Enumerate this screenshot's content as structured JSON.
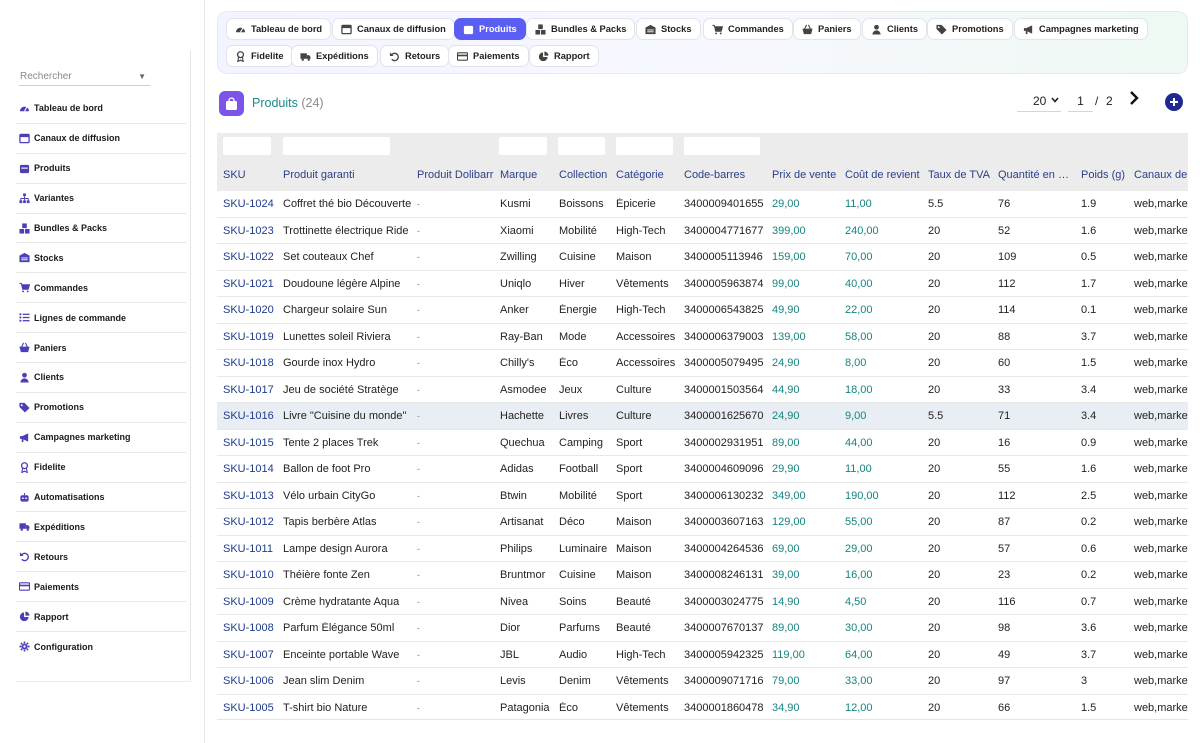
{
  "sidebar": {
    "search_placeholder": "Rechercher",
    "items": [
      {
        "label": "Tableau de bord",
        "icon": "dashboard-icon"
      },
      {
        "label": "Canaux de diffusion",
        "icon": "window-icon"
      },
      {
        "label": "Produits",
        "icon": "calendar-box-icon"
      },
      {
        "label": "Variantes",
        "icon": "sitemap-icon"
      },
      {
        "label": "Bundles & Packs",
        "icon": "cubes-icon"
      },
      {
        "label": "Stocks",
        "icon": "warehouse-icon"
      },
      {
        "label": "Commandes",
        "icon": "cart-icon"
      },
      {
        "label": "Lignes de commande",
        "icon": "list-icon"
      },
      {
        "label": "Paniers",
        "icon": "basket-icon"
      },
      {
        "label": "Clients",
        "icon": "user-icon"
      },
      {
        "label": "Promotions",
        "icon": "tag-icon"
      },
      {
        "label": "Campagnes marketing",
        "icon": "megaphone-icon"
      },
      {
        "label": "Fidelite",
        "icon": "award-icon"
      },
      {
        "label": "Automatisations",
        "icon": "robot-icon"
      },
      {
        "label": "Expéditions",
        "icon": "truck-icon"
      },
      {
        "label": "Retours",
        "icon": "undo-icon"
      },
      {
        "label": "Paiements",
        "icon": "credit-card-icon"
      },
      {
        "label": "Rapport",
        "icon": "pie-chart-icon"
      },
      {
        "label": "Configuration",
        "icon": "gear-icon"
      }
    ]
  },
  "tabs": [
    {
      "label": "Tableau de bord",
      "icon": "dashboard-icon"
    },
    {
      "label": "Canaux de diffusion",
      "icon": "window-icon"
    },
    {
      "label": "Produits",
      "icon": "calendar-box-icon",
      "active": true
    },
    {
      "label": "Bundles & Packs",
      "icon": "cubes-icon"
    },
    {
      "label": "Stocks",
      "icon": "warehouse-icon"
    },
    {
      "label": "Commandes",
      "icon": "cart-icon"
    },
    {
      "label": "Paniers",
      "icon": "basket-icon"
    },
    {
      "label": "Clients",
      "icon": "user-icon"
    },
    {
      "label": "Promotions",
      "icon": "tag-icon"
    },
    {
      "label": "Campagnes marketing",
      "icon": "megaphone-icon"
    },
    {
      "label": "Fidelite",
      "icon": "award-icon"
    },
    {
      "label": "Expéditions",
      "icon": "truck-icon"
    },
    {
      "label": "Retours",
      "icon": "undo-icon"
    },
    {
      "label": "Paiements",
      "icon": "credit-card-icon"
    },
    {
      "label": "Rapport",
      "icon": "pie-chart-icon"
    }
  ],
  "page": {
    "title": "Produits",
    "count": "(24)",
    "page_size": "20",
    "current_page": "1",
    "separator": "/",
    "total_pages": "2",
    "icon": "shopping-bag-icon",
    "accent_color": "#1d8a8a"
  },
  "table": {
    "columns": [
      "SKU",
      "Produit garanti",
      "Produit Dolibarr",
      "Marque",
      "Collection",
      "Catégorie",
      "Code-barres",
      "Prix de vente",
      "Coût de revient",
      "Taux de TVA",
      "Quantité en stock",
      "Poids (g)",
      "Canaux de diffusion"
    ],
    "rows": [
      [
        "SKU-1024",
        "Coffret thé bio Découverte",
        "-",
        "Kusmi",
        "Boissons",
        "Épicerie",
        "3400009401655",
        "29,00",
        "11,00",
        "5.5",
        "76",
        "1.9",
        "web,marketplace"
      ],
      [
        "SKU-1023",
        "Trottinette électrique Ride",
        "-",
        "Xiaomi",
        "Mobilité",
        "High-Tech",
        "3400004771677",
        "399,00",
        "240,00",
        "20",
        "52",
        "1.6",
        "web,marketplace"
      ],
      [
        "SKU-1022",
        "Set couteaux Chef",
        "-",
        "Zwilling",
        "Cuisine",
        "Maison",
        "3400005113946",
        "159,00",
        "70,00",
        "20",
        "109",
        "0.5",
        "web,marketplace"
      ],
      [
        "SKU-1021",
        "Doudoune légère Alpine",
        "-",
        "Uniqlo",
        "Hiver",
        "Vêtements",
        "3400005963874",
        "99,00",
        "40,00",
        "20",
        "112",
        "1.7",
        "web,marketplace"
      ],
      [
        "SKU-1020",
        "Chargeur solaire Sun",
        "-",
        "Anker",
        "Énergie",
        "High-Tech",
        "3400006543825",
        "49,90",
        "22,00",
        "20",
        "114",
        "0.1",
        "web,marketplace"
      ],
      [
        "SKU-1019",
        "Lunettes soleil Riviera",
        "-",
        "Ray-Ban",
        "Mode",
        "Accessoires",
        "3400006379003",
        "139,00",
        "58,00",
        "20",
        "88",
        "3.7",
        "web,marketplace"
      ],
      [
        "SKU-1018",
        "Gourde inox Hydro",
        "-",
        "Chilly's",
        "Éco",
        "Accessoires",
        "3400005079495",
        "24,90",
        "8,00",
        "20",
        "60",
        "1.5",
        "web,marketplace"
      ],
      [
        "SKU-1017",
        "Jeu de société Stratège",
        "-",
        "Asmodee",
        "Jeux",
        "Culture",
        "3400001503564",
        "44,90",
        "18,00",
        "20",
        "33",
        "3.4",
        "web,marketplace"
      ],
      [
        "SKU-1016",
        "Livre \"Cuisine du monde\"",
        "-",
        "Hachette",
        "Livres",
        "Culture",
        "3400001625670",
        "24,90",
        "9,00",
        "5.5",
        "71",
        "3.4",
        "web,marketplace"
      ],
      [
        "SKU-1015",
        "Tente 2 places Trek",
        "-",
        "Quechua",
        "Camping",
        "Sport",
        "3400002931951",
        "89,00",
        "44,00",
        "20",
        "16",
        "0.9",
        "web,marketplace"
      ],
      [
        "SKU-1014",
        "Ballon de foot Pro",
        "-",
        "Adidas",
        "Football",
        "Sport",
        "3400004609096",
        "29,90",
        "11,00",
        "20",
        "55",
        "1.6",
        "web,marketplace"
      ],
      [
        "SKU-1013",
        "Vélo urbain CityGo",
        "-",
        "Btwin",
        "Mobilité",
        "Sport",
        "3400006130232",
        "349,00",
        "190,00",
        "20",
        "112",
        "2.5",
        "web,marketplace"
      ],
      [
        "SKU-1012",
        "Tapis berbère Atlas",
        "-",
        "Artisanat",
        "Déco",
        "Maison",
        "3400003607163",
        "129,00",
        "55,00",
        "20",
        "87",
        "0.2",
        "web,marketplace"
      ],
      [
        "SKU-1011",
        "Lampe design Aurora",
        "-",
        "Philips",
        "Luminaire",
        "Maison",
        "3400004264536",
        "69,00",
        "29,00",
        "20",
        "57",
        "0.6",
        "web,marketplace"
      ],
      [
        "SKU-1010",
        "Théière fonte Zen",
        "-",
        "Bruntmor",
        "Cuisine",
        "Maison",
        "3400008246131",
        "39,00",
        "16,00",
        "20",
        "23",
        "0.2",
        "web,marketplace"
      ],
      [
        "SKU-1009",
        "Crème hydratante Aqua",
        "-",
        "Nivea",
        "Soins",
        "Beauté",
        "3400003024775",
        "14,90",
        "4,50",
        "20",
        "116",
        "0.7",
        "web,marketplace"
      ],
      [
        "SKU-1008",
        "Parfum Élégance 50ml",
        "-",
        "Dior",
        "Parfums",
        "Beauté",
        "3400007670137",
        "89,00",
        "30,00",
        "20",
        "98",
        "3.6",
        "web,marketplace"
      ],
      [
        "SKU-1007",
        "Enceinte portable Wave",
        "-",
        "JBL",
        "Audio",
        "High-Tech",
        "3400005942325",
        "119,00",
        "64,00",
        "20",
        "49",
        "3.7",
        "web,marketplace"
      ],
      [
        "SKU-1006",
        "Jean slim Denim",
        "-",
        "Levis",
        "Denim",
        "Vêtements",
        "3400009071716",
        "79,00",
        "33,00",
        "20",
        "97",
        "3",
        "web,marketplace"
      ],
      [
        "SKU-1005",
        "T-shirt bio Nature",
        "-",
        "Patagonia",
        "Éco",
        "Vêtements",
        "3400001860478",
        "34,90",
        "12,00",
        "20",
        "66",
        "1.5",
        "web,marketplace"
      ]
    ],
    "highlight_row": 8
  }
}
